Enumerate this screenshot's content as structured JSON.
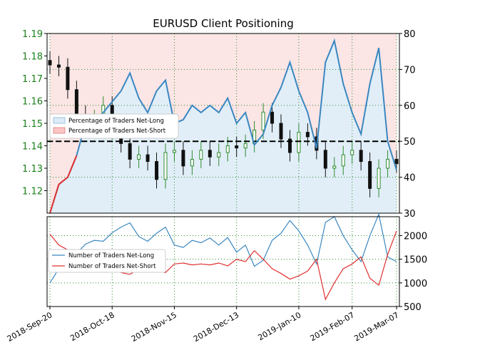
{
  "title": "EURUSD Client Positioning",
  "chart_data": [
    {
      "type": "line",
      "name": "price-and-positioning",
      "x_dates": [
        "2018-09-20",
        "2018-09-24",
        "2018-09-28",
        "2018-10-03",
        "2018-10-08",
        "2018-10-12",
        "2018-10-17",
        "2018-10-22",
        "2018-10-26",
        "2018-10-31",
        "2018-11-05",
        "2018-11-09",
        "2018-11-14",
        "2018-11-19",
        "2018-11-23",
        "2018-11-28",
        "2018-12-03",
        "2018-12-07",
        "2018-12-12",
        "2018-12-17",
        "2018-12-21",
        "2018-12-27",
        "2019-01-02",
        "2019-01-07",
        "2019-01-11",
        "2019-01-16",
        "2019-01-21",
        "2019-01-25",
        "2019-01-30",
        "2019-02-04",
        "2019-02-08",
        "2019-02-13",
        "2019-02-18",
        "2019-02-22",
        "2019-02-27",
        "2019-03-04",
        "2019-03-08",
        "2019-03-13",
        "2019-03-18",
        "2019-03-21"
      ],
      "price_close": [
        1.176,
        1.175,
        1.165,
        1.154,
        1.148,
        1.152,
        1.158,
        1.147,
        1.141,
        1.134,
        1.136,
        1.133,
        1.125,
        1.137,
        1.138,
        1.131,
        1.134,
        1.138,
        1.135,
        1.137,
        1.14,
        1.139,
        1.141,
        1.147,
        1.155,
        1.15,
        1.143,
        1.137,
        1.146,
        1.144,
        1.138,
        1.13,
        1.131,
        1.136,
        1.138,
        1.133,
        1.121,
        1.13,
        1.134,
        1.132
      ],
      "net_long_pct": [
        30,
        38,
        40,
        46,
        55,
        54,
        58,
        61,
        64,
        69,
        62,
        58,
        64,
        67,
        55,
        56,
        60,
        58,
        60,
        58,
        62,
        55,
        58,
        49,
        52,
        60,
        65,
        72,
        64,
        58,
        48,
        72,
        78,
        66,
        58,
        52,
        66,
        76,
        50,
        42
      ],
      "net_short_pct": [
        70,
        62,
        60,
        54,
        45,
        46,
        42,
        39,
        36,
        31,
        38,
        42,
        36,
        33,
        45,
        44,
        40,
        42,
        40,
        42,
        38,
        45,
        42,
        51,
        48,
        40,
        35,
        28,
        36,
        42,
        52,
        28,
        22,
        34,
        42,
        48,
        34,
        24,
        50,
        58
      ],
      "reference_line": 50,
      "left_axis": {
        "ticks": [
          "1.12",
          "1.13",
          "1.14",
          "1.15",
          "1.16",
          "1.17",
          "1.18",
          "1.19"
        ],
        "ylim": [
          1.11,
          1.19
        ]
      },
      "right_axis": {
        "ticks": [
          "30",
          "40",
          "50",
          "60",
          "70",
          "80"
        ],
        "ylim": [
          30,
          80
        ]
      },
      "legend": [
        "Percentage of Traders Net-Long",
        "Percentage of Traders Net-Short"
      ],
      "legend_placement": "center-left",
      "grid": true
    },
    {
      "type": "line",
      "name": "trader-counts",
      "series": [
        {
          "name": "Number of Traders Net-Long",
          "values": [
            1000,
            1300,
            1500,
            1620,
            1820,
            1900,
            1880,
            2060,
            2180,
            2270,
            1980,
            1880,
            2050,
            2180,
            1800,
            1750,
            1900,
            1850,
            1950,
            1800,
            1960,
            1650,
            1800,
            1350,
            1480,
            1900,
            2050,
            2320,
            2100,
            1800,
            1400,
            2280,
            2400,
            2000,
            1700,
            1450,
            2000,
            2450,
            1550,
            1450
          ]
        },
        {
          "name": "Number of Traders Net-Short",
          "values": [
            2030,
            1800,
            1700,
            1620,
            1500,
            1450,
            1380,
            1280,
            1220,
            1180,
            1300,
            1350,
            1250,
            1220,
            1400,
            1420,
            1380,
            1400,
            1380,
            1420,
            1360,
            1500,
            1450,
            1680,
            1500,
            1300,
            1200,
            1080,
            1150,
            1250,
            1500,
            650,
            1000,
            1300,
            1400,
            1550,
            1100,
            950,
            1600,
            2100
          ]
        }
      ],
      "right_axis": {
        "ticks": [
          "500",
          "1000",
          "1500",
          "2000"
        ],
        "ylim": [
          500,
          2400
        ]
      },
      "legend": [
        "Number of Traders Net-Long",
        "Number of Traders Net-Short"
      ],
      "legend_placement": "center-left",
      "grid": true
    }
  ],
  "x_axis": {
    "tick_labels": [
      "2018-Sep-20",
      "2018-Oct-18",
      "2018-Nov-15",
      "2018-Dec-13",
      "2019-Jan-10",
      "2019-Feb-07",
      "2019-Mar-07"
    ]
  },
  "colors": {
    "net_long": "#3a87c0",
    "net_short": "#e03030",
    "price_up": "#2e8b2e",
    "price_down": "#111111",
    "left_axis_text": "#1a7f1a"
  }
}
